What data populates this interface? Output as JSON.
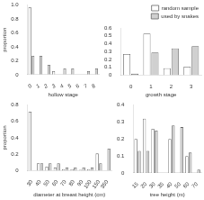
{
  "chart_data": [
    {
      "type": "bar",
      "categories": [
        "0",
        "1",
        "2",
        "3",
        "4",
        "5",
        "6",
        "7",
        "8"
      ],
      "series": [
        {
          "name": "random sample",
          "color": "#ffffff",
          "values": [
            0.97,
            0.0,
            0.0,
            0.05,
            0.0,
            0.0,
            0.0,
            0.0,
            0.0
          ]
        },
        {
          "name": "used by snakes",
          "color": "#d0d0d0",
          "values": [
            0.27,
            0.27,
            0.14,
            0.0,
            0.09,
            0.09,
            0.0,
            0.05,
            0.09
          ]
        }
      ],
      "xlabel": "hollow stage",
      "ylabel": "proportion",
      "ylim": [
        0,
        1.0
      ],
      "yticks": [
        0,
        0.2,
        0.4,
        0.6,
        0.8,
        {
          "value": 1.0,
          "label": "1.0"
        }
      ],
      "grid": false
    },
    {
      "type": "bar",
      "categories": [
        "0",
        "1",
        "2",
        "3"
      ],
      "series": [
        {
          "name": "random sample",
          "color": "#ffffff",
          "values": [
            0.27,
            0.53,
            0.09,
            0.11
          ]
        },
        {
          "name": "used by snakes",
          "color": "#d0d0d0",
          "values": [
            0.02,
            0.29,
            0.34,
            0.37
          ]
        }
      ],
      "xlabel": "growth stage",
      "ylim": [
        0,
        0.6
      ],
      "yticks": [
        0,
        0.1,
        0.2,
        0.3,
        0.4,
        0.5,
        0.6
      ],
      "grid": false,
      "legend": "upper right"
    },
    {
      "type": "bar",
      "categories": [
        "30",
        "40",
        "50",
        "60",
        "70",
        "80",
        "90",
        "100",
        "150",
        "350"
      ],
      "series": [
        {
          "name": "random sample",
          "color": "#ffffff",
          "values": [
            0.72,
            0.09,
            0.05,
            0.04,
            0.02,
            0.02,
            0.01,
            0.02,
            0.21,
            0.0
          ]
        },
        {
          "name": "used by snakes",
          "color": "#d0d0d0",
          "values": [
            0.0,
            0.09,
            0.09,
            0.09,
            0.04,
            0.04,
            0.04,
            0.04,
            0.09,
            0.27
          ]
        }
      ],
      "xlabel": "diameter at breast height (cm)",
      "ylabel": "proportion",
      "ylim": [
        0,
        0.8
      ],
      "yticks": [
        0,
        0.2,
        0.4,
        0.6,
        0.8
      ],
      "grid": false
    },
    {
      "type": "bar",
      "categories": [
        "15",
        "20",
        "30",
        "35",
        "40",
        "50",
        "60",
        "70"
      ],
      "series": [
        {
          "name": "random sample",
          "color": "#ffffff",
          "values": [
            0.2,
            0.32,
            0.26,
            0.0,
            0.2,
            0.0,
            0.1,
            0.0
          ]
        },
        {
          "name": "used by snakes",
          "color": "#d0d0d0",
          "values": [
            0.13,
            0.13,
            0.25,
            0.0,
            0.28,
            0.27,
            0.12,
            0.02
          ]
        }
      ],
      "xlabel": "tree height (m)",
      "ylim": [
        0,
        0.4
      ],
      "yticks": [
        0,
        0.1,
        0.2,
        0.3,
        0.4
      ],
      "grid": false
    }
  ]
}
